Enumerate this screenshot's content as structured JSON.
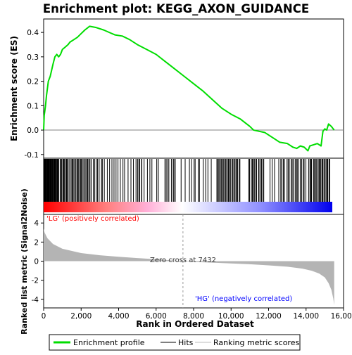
{
  "chart_data": {
    "type": "line",
    "title": "Enrichment plot: KEGG_AXON_GUIDANCE",
    "xlabel": "Rank in Ordered Dataset",
    "ylabel_top": "Enrichment score (ES)",
    "ylabel_bottom": "Ranked list metric (Signal2Noise)",
    "x_ticks": [
      "0",
      "2,000",
      "4,000",
      "6,000",
      "8,000",
      "10,000",
      "12,000",
      "14,000",
      "16,000"
    ],
    "es_ticks": [
      "-0.1",
      "0.0",
      "0.1",
      "0.2",
      "0.3",
      "0.4"
    ],
    "metric_ticks": [
      "-4",
      "-2",
      "0",
      "2",
      "4"
    ],
    "xlim": [
      0,
      16000
    ],
    "es_ylim": [
      -0.115,
      0.455
    ],
    "metric_ylim": [
      -4.9,
      4.9
    ],
    "n_genes": 15500,
    "zero_cross_rank": 7432,
    "zero_cross_label": "Zero cross at 7432",
    "lg_label": "'LG' (positively correlated)",
    "hg_label": "'HG' (negatively correlated)",
    "legend": {
      "placement": "bottom",
      "items": [
        "Enrichment profile",
        "Hits",
        "Ranking metric scores"
      ]
    },
    "colors": {
      "es_line": "#00dd00",
      "hits": "#000000",
      "metric_fill": "#b4b4b4",
      "zero_line": "#808080",
      "lg_text": "#ff0000",
      "hg_text": "#0000ff",
      "heat_pos": "#ff0000",
      "heat_mid": "#ffffff",
      "heat_neg": "#0000ff"
    },
    "es_profile": [
      [
        0,
        0.0
      ],
      [
        30,
        0.06
      ],
      [
        100,
        0.1
      ],
      [
        150,
        0.14
      ],
      [
        250,
        0.2
      ],
      [
        350,
        0.22
      ],
      [
        500,
        0.27
      ],
      [
        600,
        0.3
      ],
      [
        700,
        0.31
      ],
      [
        800,
        0.3
      ],
      [
        900,
        0.31
      ],
      [
        1000,
        0.33
      ],
      [
        1150,
        0.34
      ],
      [
        1300,
        0.35
      ],
      [
        1400,
        0.36
      ],
      [
        1600,
        0.37
      ],
      [
        1800,
        0.38
      ],
      [
        2000,
        0.395
      ],
      [
        2200,
        0.41
      ],
      [
        2450,
        0.425
      ],
      [
        2800,
        0.42
      ],
      [
        3200,
        0.41
      ],
      [
        3500,
        0.4
      ],
      [
        3800,
        0.39
      ],
      [
        4200,
        0.385
      ],
      [
        4600,
        0.37
      ],
      [
        5000,
        0.35
      ],
      [
        5500,
        0.33
      ],
      [
        6000,
        0.31
      ],
      [
        6500,
        0.28
      ],
      [
        7000,
        0.25
      ],
      [
        7500,
        0.22
      ],
      [
        8000,
        0.19
      ],
      [
        8500,
        0.16
      ],
      [
        9000,
        0.125
      ],
      [
        9500,
        0.09
      ],
      [
        10000,
        0.065
      ],
      [
        10500,
        0.045
      ],
      [
        11000,
        0.015
      ],
      [
        11200,
        0.0
      ],
      [
        11500,
        -0.005
      ],
      [
        11800,
        -0.01
      ],
      [
        12200,
        -0.03
      ],
      [
        12600,
        -0.05
      ],
      [
        13000,
        -0.055
      ],
      [
        13300,
        -0.07
      ],
      [
        13500,
        -0.075
      ],
      [
        13700,
        -0.065
      ],
      [
        13900,
        -0.07
      ],
      [
        14100,
        -0.085
      ],
      [
        14200,
        -0.065
      ],
      [
        14400,
        -0.06
      ],
      [
        14600,
        -0.055
      ],
      [
        14800,
        -0.065
      ],
      [
        14900,
        -0.005
      ],
      [
        15000,
        0.005
      ],
      [
        15100,
        0.0
      ],
      [
        15200,
        0.025
      ],
      [
        15350,
        0.015
      ],
      [
        15500,
        0.0
      ]
    ],
    "metric_profile": [
      [
        0,
        3.4
      ],
      [
        50,
        3.0
      ],
      [
        200,
        2.4
      ],
      [
        500,
        1.8
      ],
      [
        1000,
        1.3
      ],
      [
        2000,
        0.85
      ],
      [
        3000,
        0.62
      ],
      [
        4000,
        0.46
      ],
      [
        5000,
        0.32
      ],
      [
        6000,
        0.2
      ],
      [
        6800,
        0.08
      ],
      [
        7432,
        0.0
      ],
      [
        8000,
        -0.08
      ],
      [
        9000,
        -0.16
      ],
      [
        10000,
        -0.24
      ],
      [
        11000,
        -0.32
      ],
      [
        12000,
        -0.44
      ],
      [
        13000,
        -0.58
      ],
      [
        13800,
        -0.78
      ],
      [
        14300,
        -1.0
      ],
      [
        14700,
        -1.3
      ],
      [
        15000,
        -1.7
      ],
      [
        15200,
        -2.3
      ],
      [
        15350,
        -3.0
      ],
      [
        15450,
        -3.9
      ],
      [
        15500,
        -4.6
      ]
    ],
    "hit_segments": [
      [
        10,
        700,
        30
      ],
      [
        700,
        1400,
        14
      ],
      [
        1400,
        2500,
        20
      ],
      [
        2500,
        3200,
        8
      ],
      [
        3200,
        4000,
        7
      ],
      [
        4000,
        4900,
        6
      ],
      [
        4900,
        5300,
        6
      ],
      [
        5300,
        6200,
        6
      ],
      [
        6400,
        7100,
        8
      ],
      [
        7300,
        7600,
        2
      ],
      [
        7700,
        8400,
        6
      ],
      [
        8500,
        9000,
        4
      ],
      [
        9200,
        10500,
        24
      ],
      [
        10900,
        11800,
        14
      ],
      [
        12000,
        12400,
        3
      ],
      [
        12500,
        13000,
        6
      ],
      [
        13000,
        14000,
        14
      ],
      [
        14100,
        14700,
        10
      ],
      [
        14700,
        15300,
        12
      ]
    ]
  }
}
